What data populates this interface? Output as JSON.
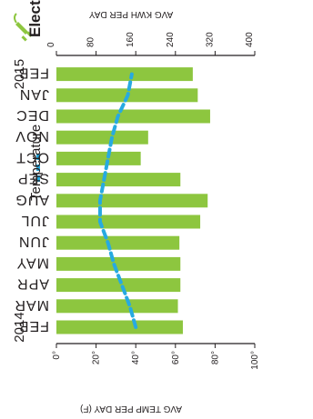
{
  "app": {
    "title": "Electric",
    "legend_label": "Temperature",
    "icon": "plug-icon"
  },
  "chart_data": {
    "type": "bar",
    "orientation": "horizontal",
    "rotated": "180deg",
    "categories": [
      "FEB",
      "MAR",
      "APR",
      "MAY",
      "JUN",
      "JUL",
      "AUG",
      "SEP",
      "OCT",
      "NOV",
      "DEC",
      "JAN",
      "FEB"
    ],
    "year_labels": [
      {
        "text": "2014",
        "category_index": 0
      },
      {
        "text": "2015",
        "category_index": 12
      }
    ],
    "series": [
      {
        "axis": "primary",
        "color": "#8dc63f",
        "values": [
          255,
          245,
          250,
          250,
          248,
          290,
          305,
          250,
          170,
          185,
          310,
          285,
          275
        ]
      },
      {
        "name": "Temperature",
        "axis": "secondary",
        "color": "#27aae1",
        "line_style": "dashed",
        "values": [
          40,
          37,
          33,
          29,
          26,
          22,
          22,
          24,
          26,
          28,
          31,
          36,
          38
        ]
      }
    ],
    "primary_axis": {
      "label": "AVG KWH PER DAY",
      "ticks": [
        "400",
        "320",
        "240",
        "160",
        "80",
        "0"
      ],
      "range": [
        0,
        400
      ]
    },
    "secondary_axis": {
      "label": "AVG TEMP PER DAY (F)",
      "ticks": [
        "100°",
        "80°",
        "60°",
        "40°",
        "20°",
        "0°"
      ],
      "range": [
        0,
        100
      ]
    },
    "grid": false,
    "legend": "top-right",
    "colors": {
      "bars": "#8dc63f",
      "line": "#27aae1",
      "text": "#231f20"
    }
  }
}
